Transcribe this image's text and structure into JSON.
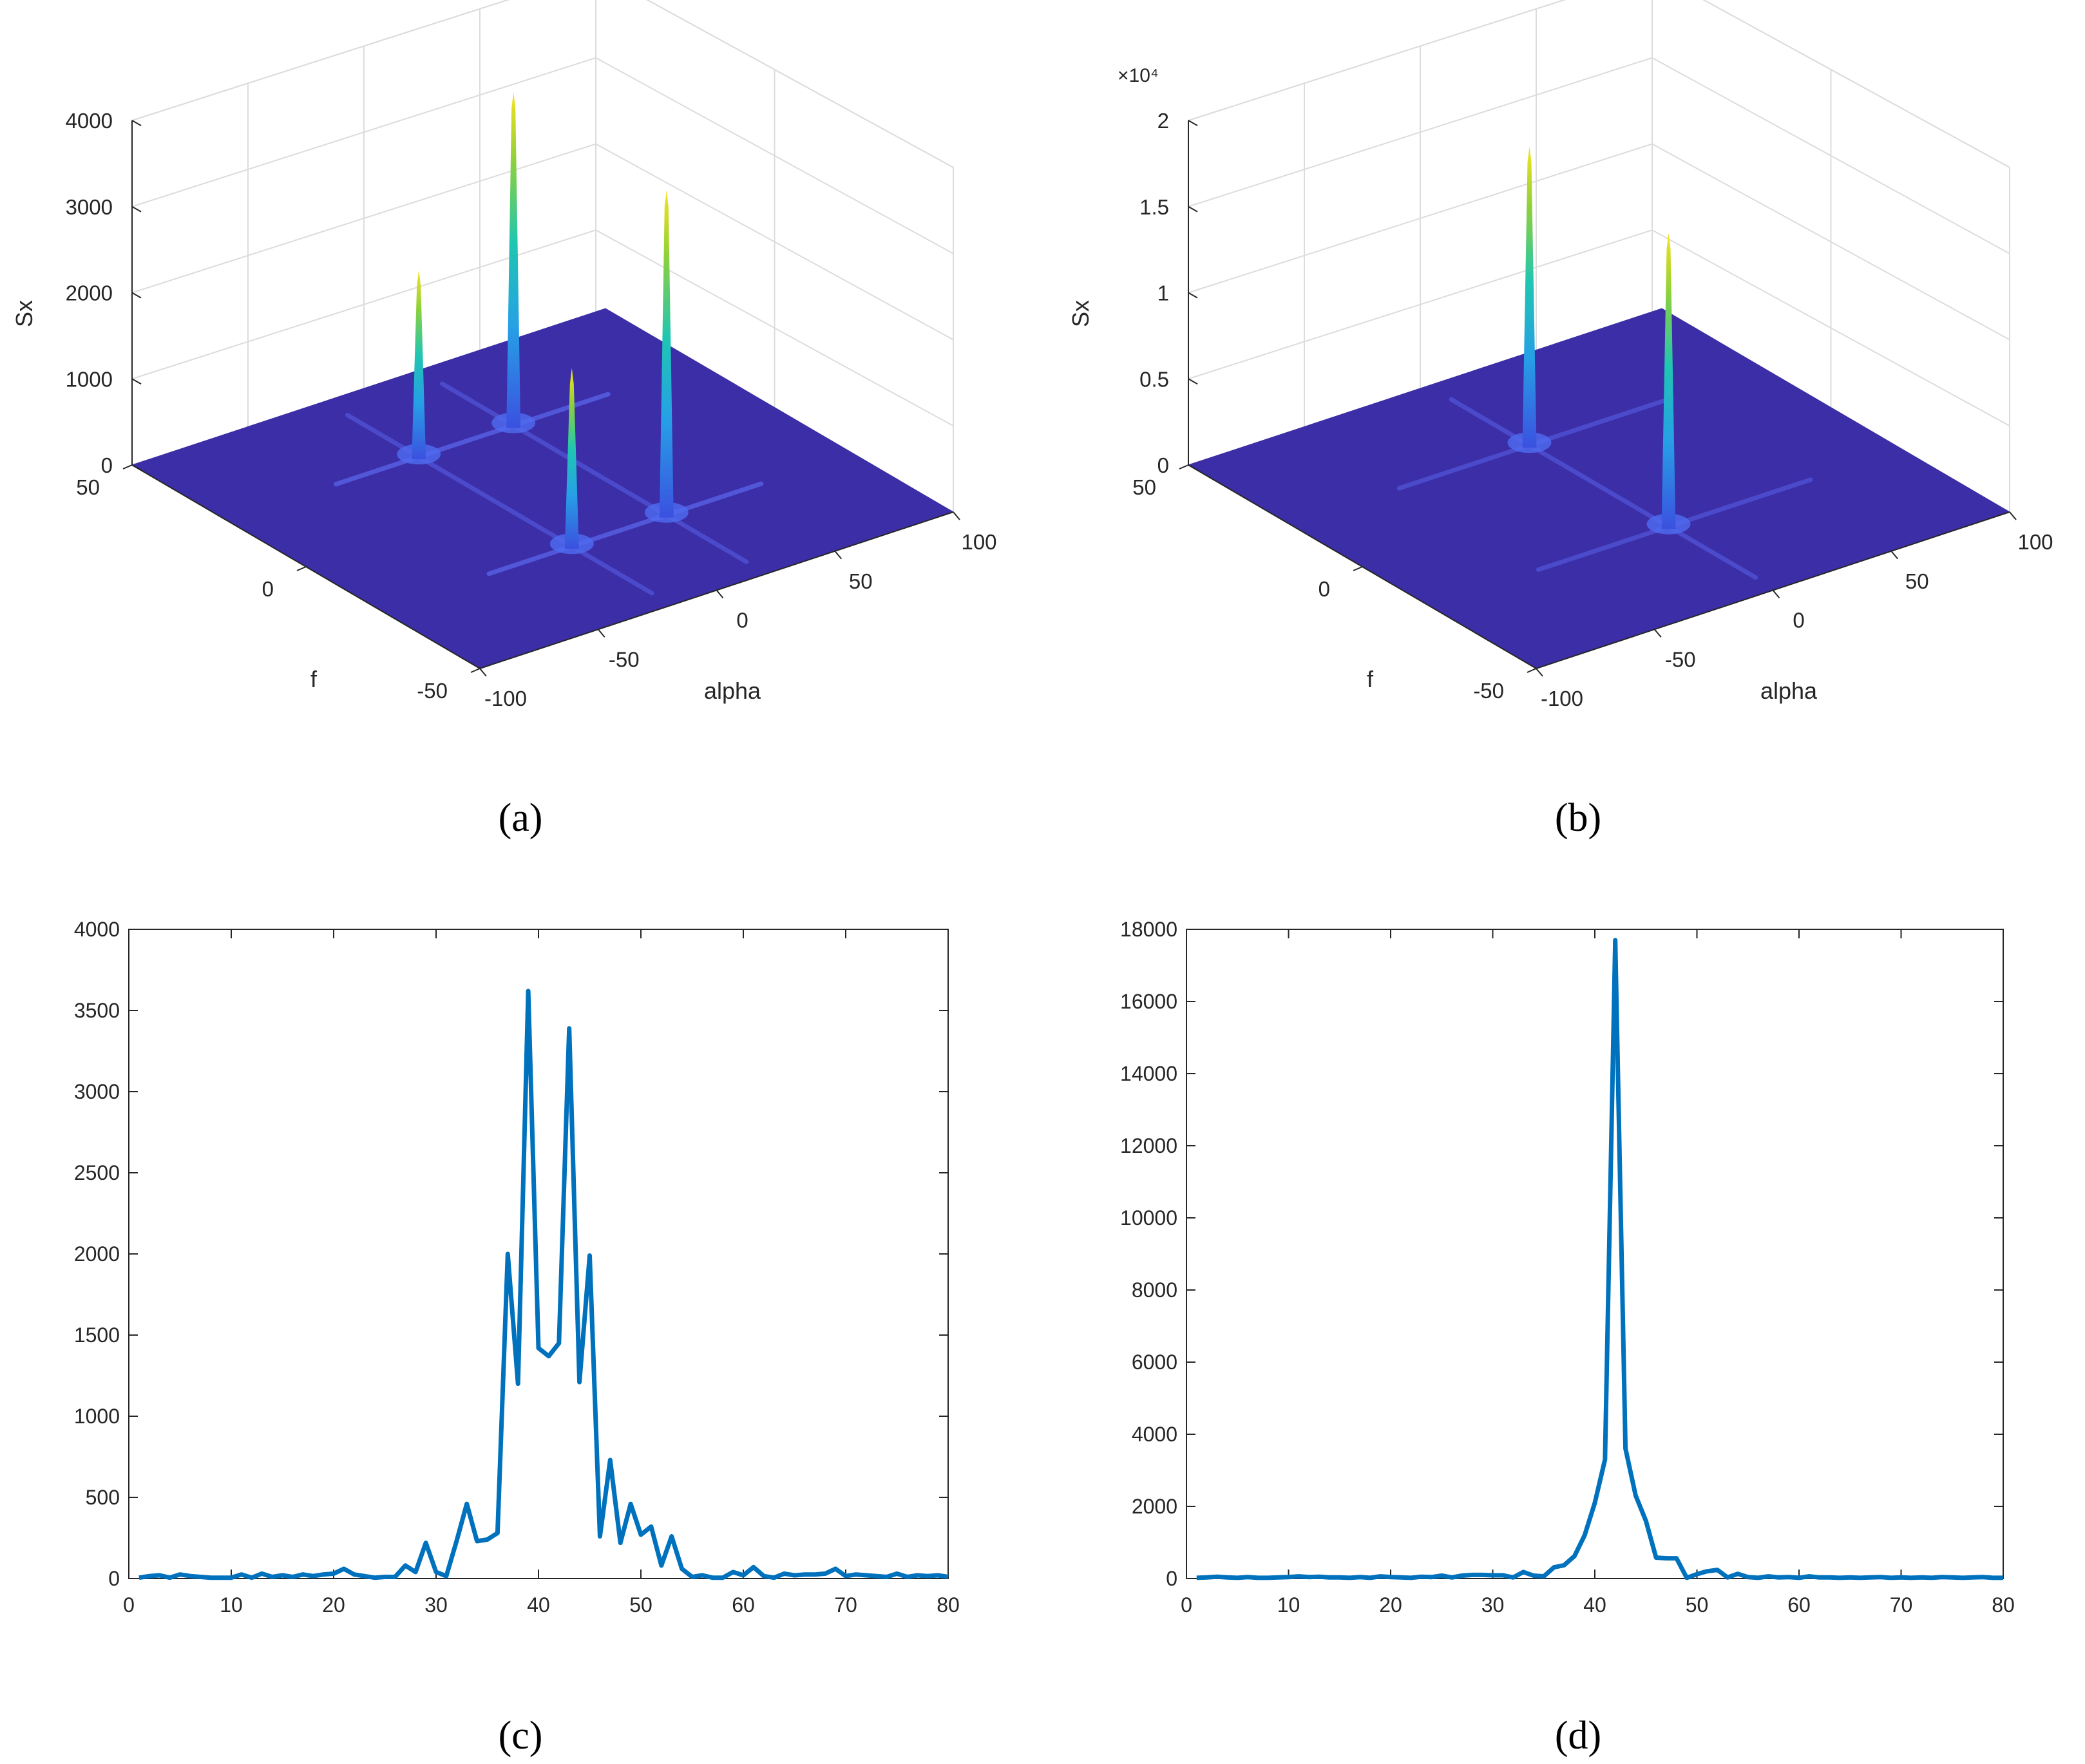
{
  "chart_data": [
    {
      "id": "a",
      "type": "surface3d",
      "caption": "(a)",
      "zlabel": "Sx",
      "xlabel": "alpha",
      "ylabel": "f",
      "zticks": [
        "0",
        "1000",
        "2000",
        "3000",
        "4000"
      ],
      "alpha_ticks": [
        "-100",
        "-50",
        "0",
        "50",
        "100"
      ],
      "f_ticks": [
        "-50",
        "0",
        "50"
      ],
      "exponent_label": "",
      "zlim": [
        0,
        4000
      ],
      "alpha_range": [
        -100,
        100
      ],
      "f_range": [
        -50,
        50
      ],
      "peaks": [
        {
          "alpha": -20,
          "f": 22,
          "value": 2200
        },
        {
          "alpha": 20,
          "f": 22,
          "value": 3900
        },
        {
          "alpha": -20,
          "f": -22,
          "value": 2100
        },
        {
          "alpha": 20,
          "f": -22,
          "value": 3800
        }
      ]
    },
    {
      "id": "b",
      "type": "surface3d",
      "caption": "(b)",
      "zlabel": "Sx",
      "xlabel": "alpha",
      "ylabel": "f",
      "zticks": [
        "0",
        "0.5",
        "1",
        "1.5",
        "2"
      ],
      "alpha_ticks": [
        "-100",
        "-50",
        "0",
        "50",
        "100"
      ],
      "f_ticks": [
        "-50",
        "0",
        "50"
      ],
      "exponent_label": "×10⁴",
      "zlim": [
        0,
        20000
      ],
      "alpha_range": [
        -100,
        100
      ],
      "f_range": [
        -50,
        50
      ],
      "peaks": [
        {
          "alpha": 0,
          "f": 20,
          "value": 17500
        },
        {
          "alpha": 0,
          "f": -20,
          "value": 17200
        }
      ]
    },
    {
      "id": "c",
      "type": "line",
      "caption": "(c)",
      "xlim": [
        0,
        80
      ],
      "ylim": [
        0,
        4000
      ],
      "xticks": [
        0,
        10,
        20,
        30,
        40,
        50,
        60,
        70,
        80
      ],
      "yticks": [
        0,
        500,
        1000,
        1500,
        2000,
        2500,
        3000,
        3500,
        4000
      ],
      "color": "#0072BD",
      "x": [
        1,
        2,
        3,
        4,
        5,
        6,
        7,
        8,
        9,
        10,
        11,
        12,
        13,
        14,
        15,
        16,
        17,
        18,
        19,
        20,
        21,
        22,
        23,
        24,
        25,
        26,
        27,
        28,
        29,
        30,
        31,
        32,
        33,
        34,
        35,
        36,
        37,
        38,
        39,
        40,
        41,
        42,
        43,
        44,
        45,
        46,
        47,
        48,
        49,
        50,
        51,
        52,
        53,
        54,
        55,
        56,
        57,
        58,
        59,
        60,
        61,
        62,
        63,
        64,
        65,
        66,
        67,
        68,
        69,
        70,
        71,
        72,
        73,
        74,
        75,
        76,
        77,
        78,
        79,
        80
      ],
      "values": [
        5,
        15,
        20,
        5,
        25,
        15,
        10,
        5,
        5,
        5,
        25,
        5,
        30,
        10,
        20,
        10,
        25,
        15,
        25,
        30,
        60,
        25,
        15,
        5,
        10,
        10,
        80,
        40,
        220,
        40,
        15,
        230,
        460,
        230,
        240,
        280,
        2000,
        1200,
        3620,
        1420,
        1370,
        1450,
        3390,
        1210,
        1990,
        260,
        730,
        220,
        460,
        270,
        320,
        80,
        260,
        60,
        10,
        20,
        5,
        5,
        40,
        20,
        70,
        15,
        5,
        30,
        20,
        25,
        25,
        30,
        60,
        15,
        25,
        20,
        15,
        10,
        30,
        10,
        20,
        15,
        20,
        10
      ]
    },
    {
      "id": "d",
      "type": "line",
      "caption": "(d)",
      "xlim": [
        0,
        80
      ],
      "ylim": [
        0,
        18000
      ],
      "xticks": [
        0,
        10,
        20,
        30,
        40,
        50,
        60,
        70,
        80
      ],
      "yticks": [
        0,
        2000,
        4000,
        6000,
        8000,
        10000,
        12000,
        14000,
        16000,
        18000
      ],
      "color": "#0072BD",
      "x": [
        1,
        2,
        3,
        4,
        5,
        6,
        7,
        8,
        9,
        10,
        11,
        12,
        13,
        14,
        15,
        16,
        17,
        18,
        19,
        20,
        21,
        22,
        23,
        24,
        25,
        26,
        27,
        28,
        29,
        30,
        31,
        32,
        33,
        34,
        35,
        36,
        37,
        38,
        39,
        40,
        41,
        42,
        43,
        44,
        45,
        46,
        47,
        48,
        49,
        50,
        51,
        52,
        53,
        54,
        55,
        56,
        57,
        58,
        59,
        60,
        61,
        62,
        63,
        64,
        65,
        66,
        67,
        68,
        69,
        70,
        71,
        72,
        73,
        74,
        75,
        76,
        77,
        78,
        79,
        80
      ],
      "values": [
        20,
        30,
        50,
        30,
        20,
        40,
        20,
        20,
        30,
        40,
        60,
        40,
        50,
        30,
        30,
        20,
        40,
        20,
        60,
        40,
        30,
        20,
        50,
        40,
        80,
        30,
        80,
        100,
        100,
        90,
        90,
        30,
        180,
        80,
        60,
        310,
        370,
        620,
        1200,
        2100,
        3300,
        17700,
        3600,
        2300,
        1600,
        580,
        560,
        560,
        20,
        120,
        200,
        240,
        30,
        130,
        40,
        20,
        60,
        30,
        40,
        20,
        60,
        30,
        30,
        20,
        30,
        20,
        30,
        40,
        20,
        30,
        20,
        30,
        20,
        40,
        30,
        20,
        30,
        40,
        20,
        20
      ]
    }
  ]
}
